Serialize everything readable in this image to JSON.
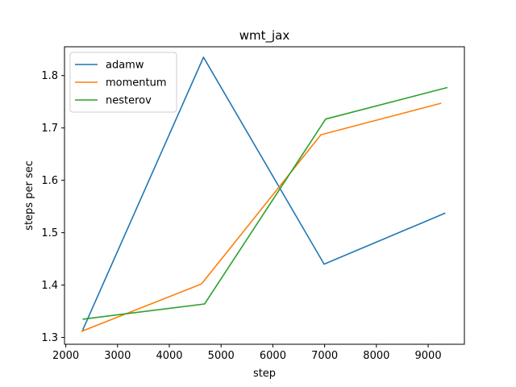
{
  "chart_data": {
    "type": "line",
    "title": "wmt_jax",
    "xlabel": "step",
    "ylabel": "steps per sec",
    "xlim": [
      1975,
      9700
    ],
    "ylim": [
      1.287,
      1.855
    ],
    "xticks": [
      2000,
      3000,
      4000,
      5000,
      6000,
      7000,
      8000,
      9000
    ],
    "yticks": [
      1.3,
      1.4,
      1.5,
      1.6,
      1.7,
      1.8
    ],
    "xtick_labels": [
      "2000",
      "3000",
      "4000",
      "5000",
      "6000",
      "7000",
      "8000",
      "9000"
    ],
    "ytick_labels": [
      "1.3",
      "1.4",
      "1.5",
      "1.6",
      "1.7",
      "1.8"
    ],
    "legend_position": "top-left",
    "grid": false,
    "series": [
      {
        "name": "adamw",
        "color": "#1f77b4",
        "x": [
          2330,
          4660,
          6990,
          9320
        ],
        "y": [
          1.315,
          1.835,
          1.44,
          1.537
        ]
      },
      {
        "name": "momentum",
        "color": "#ff7f0e",
        "x": [
          2310,
          4620,
          6930,
          9240
        ],
        "y": [
          1.312,
          1.402,
          1.687,
          1.747
        ]
      },
      {
        "name": "nesterov",
        "color": "#2ca02c",
        "x": [
          2340,
          4680,
          7020,
          9360
        ],
        "y": [
          1.335,
          1.364,
          1.717,
          1.777
        ]
      }
    ]
  }
}
